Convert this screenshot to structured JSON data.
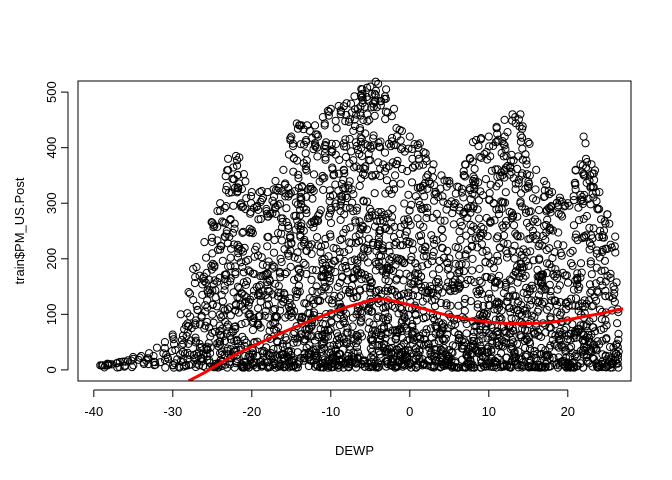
{
  "chart_data": {
    "type": "scatter",
    "title": "",
    "xlabel": "DEWP",
    "ylabel": "train$PM_US.Post",
    "xlim": [
      -42,
      28
    ],
    "ylim": [
      -20,
      520
    ],
    "x_ticks": [
      -40,
      -30,
      -20,
      -10,
      0,
      10,
      20
    ],
    "y_ticks": [
      0,
      100,
      200,
      300,
      400,
      500
    ],
    "x_tick_labels": [
      "-40",
      "-30",
      "-20",
      "-10",
      "0",
      "10",
      "20"
    ],
    "y_tick_labels": [
      "0",
      "100",
      "200",
      "300",
      "400",
      "500"
    ],
    "grid": false,
    "legend": "none",
    "point_style": "open-circle",
    "point_color": "#000000",
    "smooth_color": "#ff0000",
    "upper_envelope": {
      "x": [
        -39,
        -36,
        -33,
        -30,
        -28,
        -26,
        -24,
        -23,
        -22,
        -20,
        -18,
        -16,
        -15,
        -14,
        -12,
        -10,
        -8,
        -6,
        -5,
        -4,
        -3,
        -2,
        -1,
        0,
        2,
        4,
        6,
        8,
        10,
        12,
        13,
        14,
        16,
        18,
        20,
        22,
        24,
        26
      ],
      "y": [
        8,
        15,
        30,
        60,
        140,
        230,
        300,
        380,
        385,
        320,
        320,
        360,
        420,
        440,
        440,
        470,
        480,
        505,
        510,
        515,
        505,
        470,
        430,
        420,
        390,
        350,
        330,
        410,
        420,
        450,
        460,
        460,
        360,
        320,
        300,
        420,
        320,
        240
      ]
    },
    "smooth_line": {
      "x": [
        -28,
        -26,
        -24,
        -22,
        -20,
        -18,
        -16,
        -14,
        -12,
        -10,
        -8,
        -6,
        -5,
        -4,
        -3,
        -2,
        0,
        2,
        4,
        6,
        8,
        10,
        12,
        14,
        16,
        18,
        20,
        22,
        24,
        26,
        27
      ],
      "y": [
        -20,
        -5,
        12,
        28,
        42,
        55,
        68,
        80,
        92,
        103,
        113,
        121,
        125,
        128,
        127,
        124,
        117,
        109,
        101,
        95,
        90,
        86,
        84,
        83,
        84,
        86,
        90,
        96,
        101,
        107,
        110
      ]
    }
  }
}
